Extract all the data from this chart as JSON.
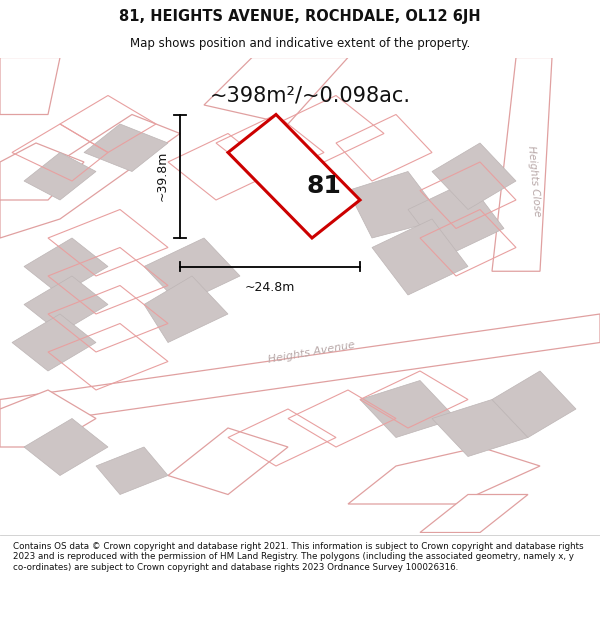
{
  "title": "81, HEIGHTS AVENUE, ROCHDALE, OL12 6JH",
  "subtitle": "Map shows position and indicative extent of the property.",
  "area_text": "~398m²/~0.098ac.",
  "dim_width": "~24.8m",
  "dim_height": "~39.8m",
  "label": "81",
  "footer": "Contains OS data © Crown copyright and database right 2021. This information is subject to Crown copyright and database rights 2023 and is reproduced with the permission of HM Land Registry. The polygons (including the associated geometry, namely x, y co-ordinates) are subject to Crown copyright and database rights 2023 Ordnance Survey 100026316.",
  "bg_color": "#ffffff",
  "map_bg": "#f0ecec",
  "road_fill": "#ffffff",
  "road_edge": "#e0a0a0",
  "bld_fill": "#cdc5c5",
  "bld_edge": "#bdb5b5",
  "parcel_fill": "none",
  "parcel_edge": "#e8a0a0",
  "plot_color": "#cc0000",
  "plot_fill": "#ffffff",
  "street_label": "Heights Avenue",
  "street_label2": "Heights Close",
  "title_fontsize": 10.5,
  "subtitle_fontsize": 8.5,
  "footer_fontsize": 6.3,
  "area_fontsize": 15,
  "dim_fontsize": 9,
  "label_fontsize": 18
}
